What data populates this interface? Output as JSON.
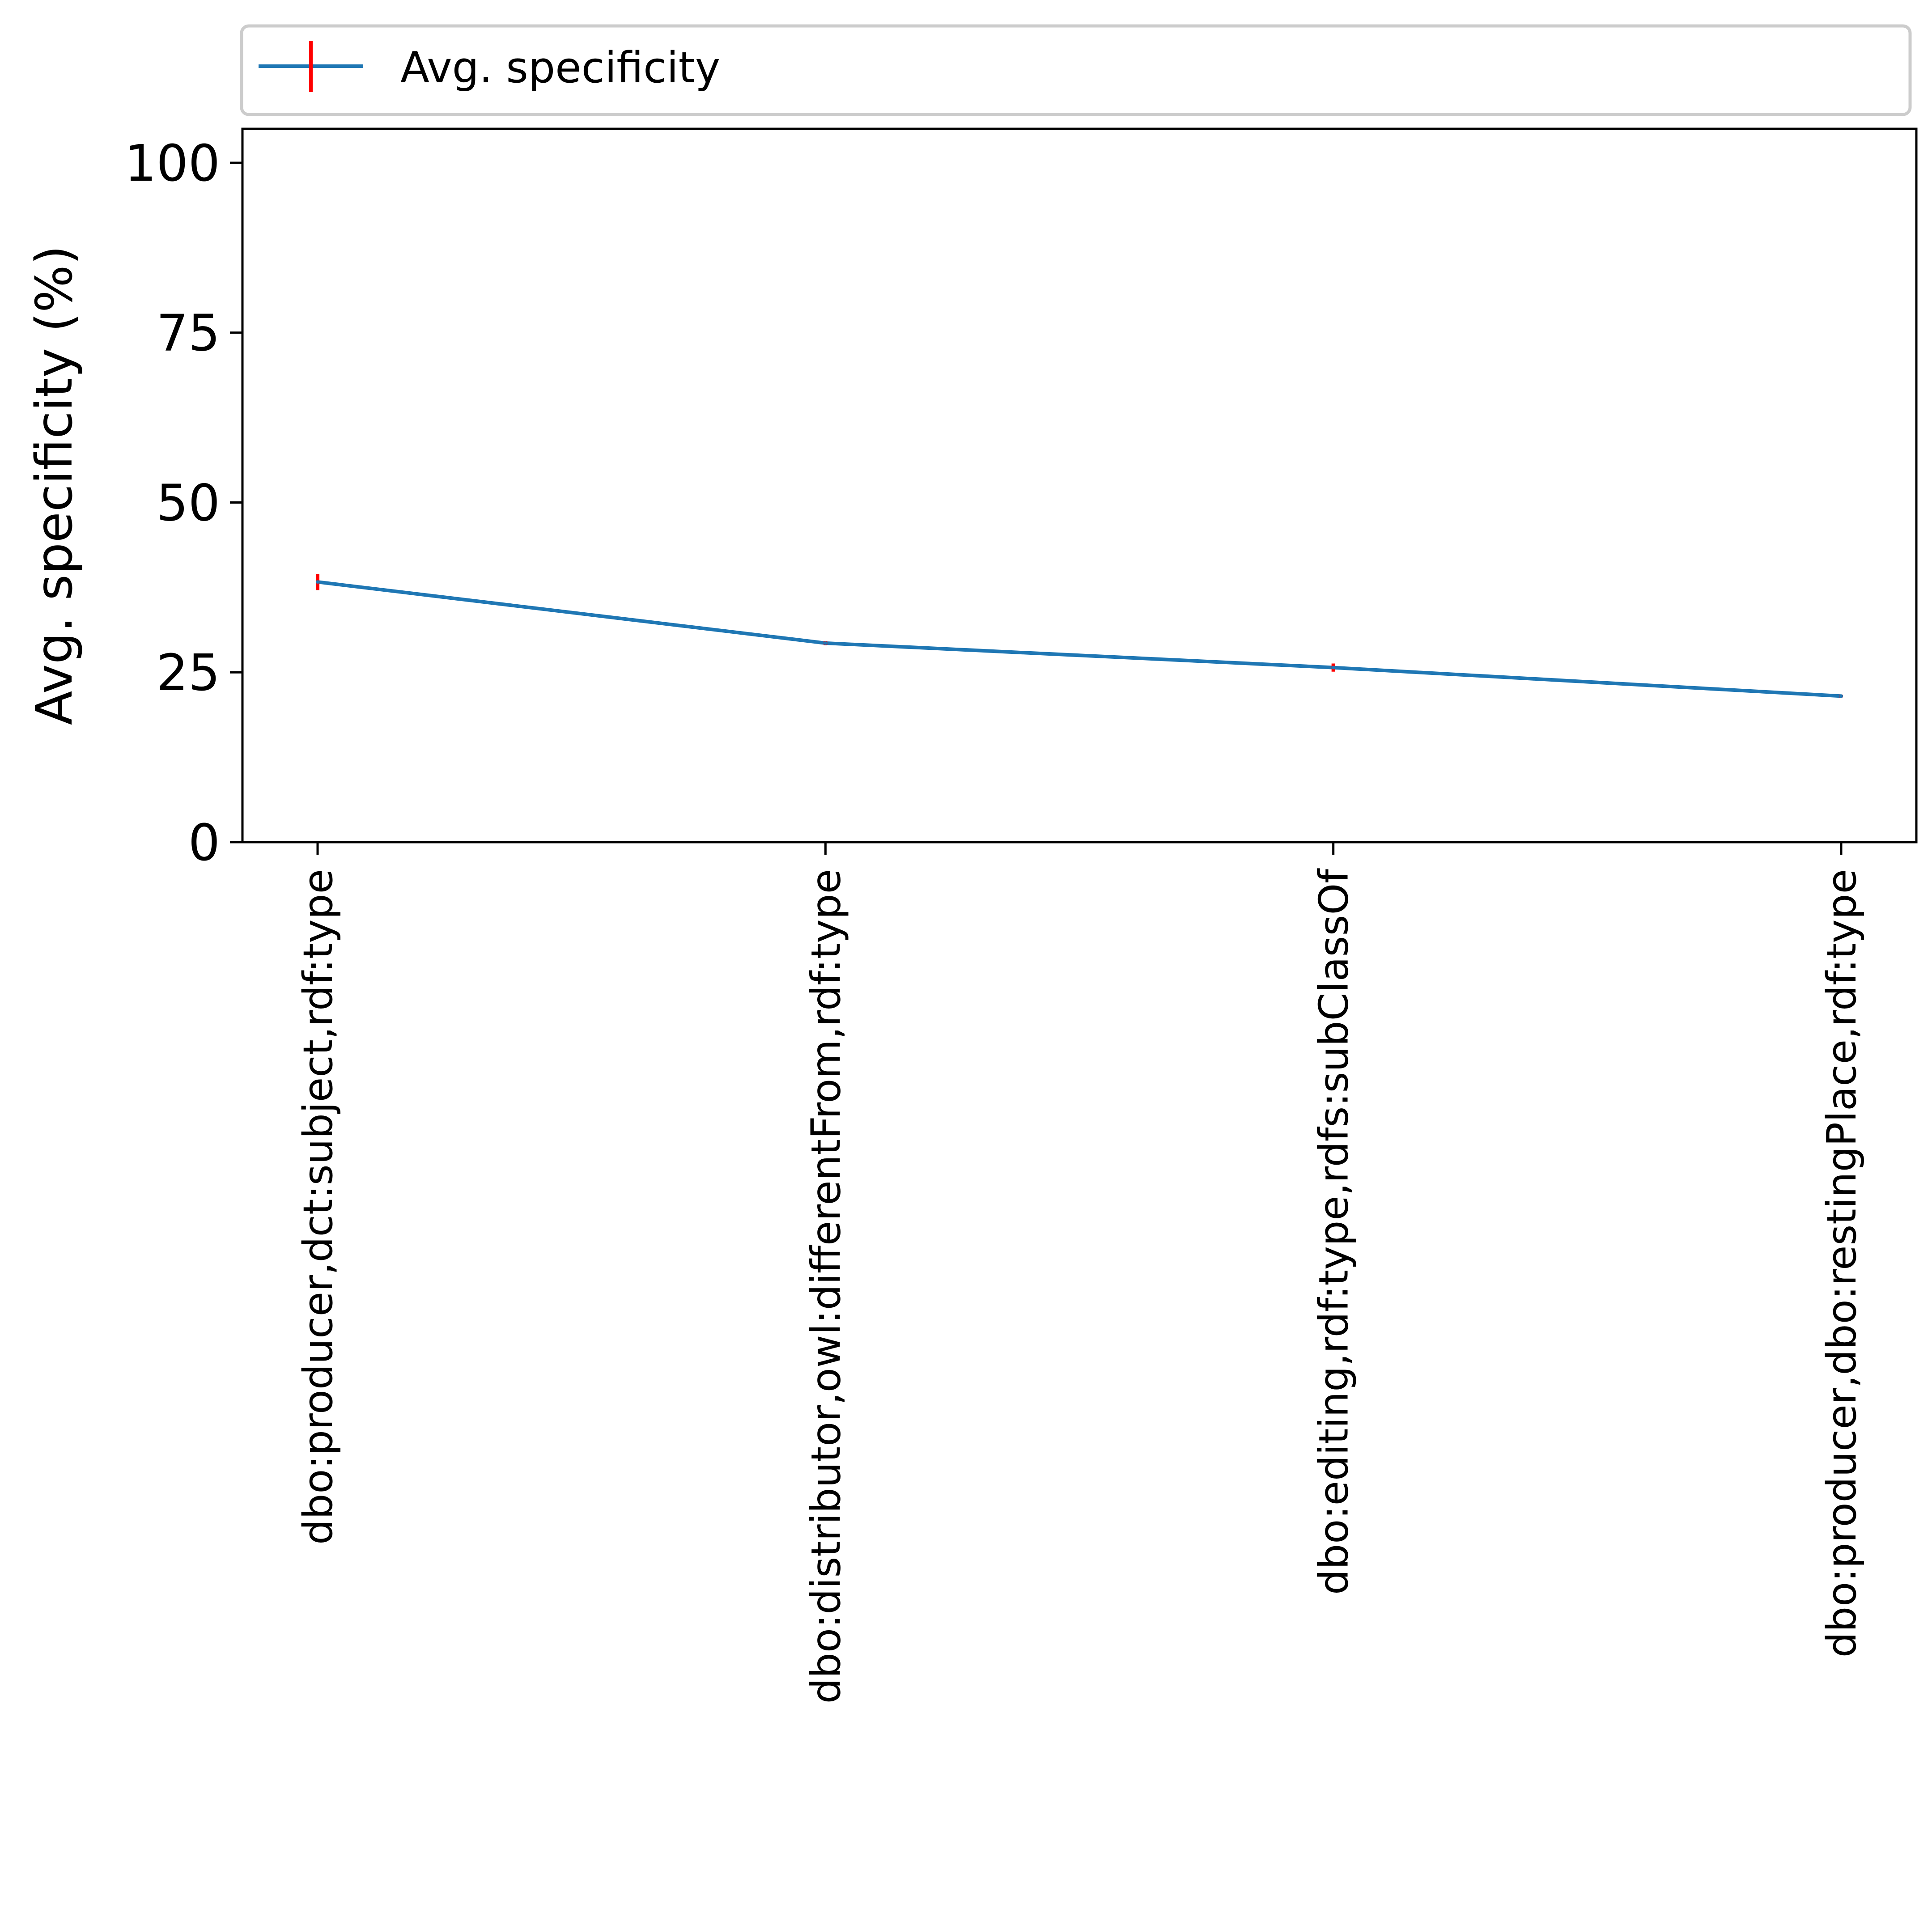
{
  "chart_data": {
    "type": "line",
    "categories": [
      "dbo:producer,dct:subject,rdf:type",
      "dbo:distributor,owl:differentFrom,rdf:type",
      "dbo:editing,rdf:type,rdfs:subClassOf",
      "dbo:producer,dbo:restingPlace,rdf:type"
    ],
    "series": [
      {
        "name": "Avg. specificity",
        "values": [
          38.3,
          29.3,
          25.7,
          21.5
        ],
        "errors": [
          1.2,
          0.3,
          0.6,
          0.2
        ],
        "color": "#1f77b4",
        "error_color": "#ff0000"
      }
    ],
    "title": "",
    "xlabel": "",
    "ylabel": "Avg. specificity (%)",
    "ylim": [
      0,
      105
    ],
    "yticks": [
      0,
      25,
      50,
      75,
      100
    ],
    "grid": false,
    "legend": "top, above plot"
  }
}
